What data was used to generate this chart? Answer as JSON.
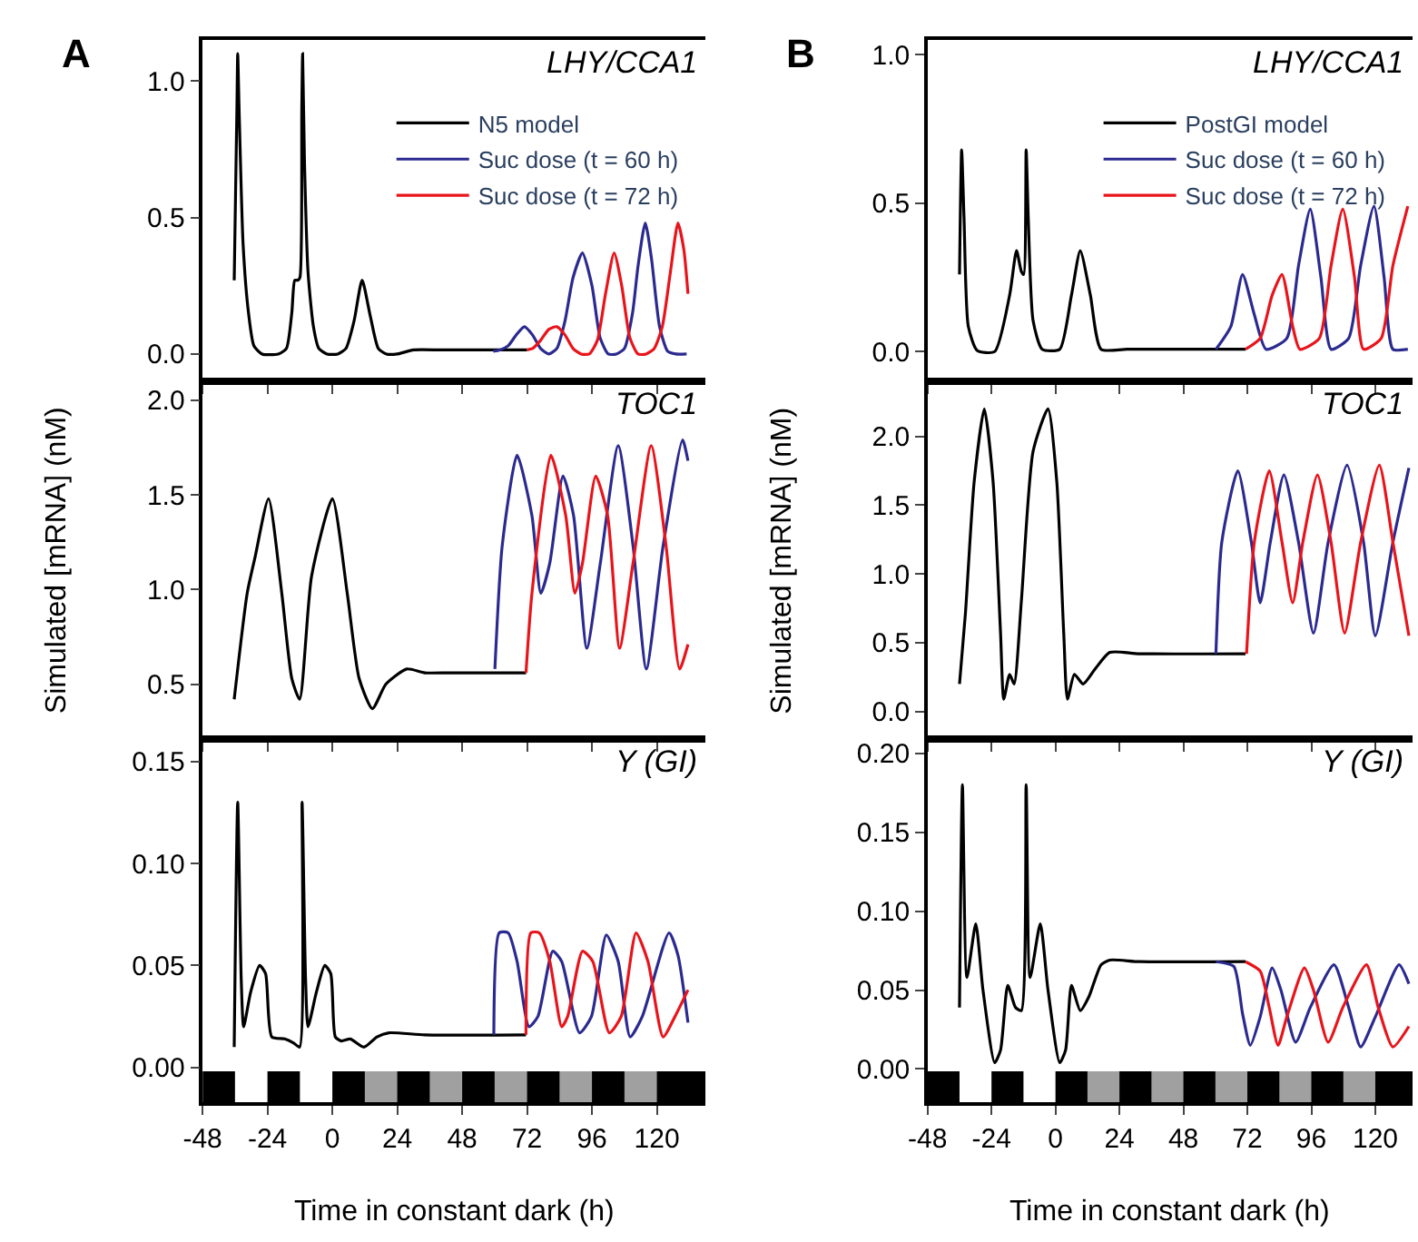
{
  "chart_data": [
    {
      "type": "line",
      "title": "LHY/CCA1",
      "annotations": [
        "A"
      ],
      "legend": "top right",
      "grid": false,
      "tick_labels": "y",
      "xlim": [
        -48,
        138
      ],
      "ylim": [
        -0.1,
        1.15
      ],
      "xticks": [
        -48,
        -24,
        0,
        24,
        48,
        72,
        96,
        120
      ],
      "yticks": [
        {
          "value": 0,
          "label": "0.0"
        },
        {
          "value": 0.5,
          "label": "0.5"
        },
        {
          "value": 1,
          "label": "1.0"
        }
      ],
      "series": [
        {
          "name": "N5 model",
          "color": "#000000",
          "x": [
            -36.3,
            -35.3,
            -35,
            -34.5,
            -33,
            -31,
            -29,
            -26,
            -20,
            -17,
            -15,
            -13.9,
            -12.8,
            -12,
            -11.3,
            -11,
            -10.3,
            -9,
            -7,
            -5,
            -2,
            2,
            5,
            8,
            11,
            14,
            17,
            20,
            24,
            30,
            40,
            50,
            60,
            72
          ],
          "values": [
            0.27,
            0.9,
            1.1,
            0.9,
            0.4,
            0.15,
            0.03,
            0,
            0,
            0.02,
            0.15,
            0.27,
            0.27,
            0.28,
            0.9,
            1.1,
            0.7,
            0.3,
            0.1,
            0.02,
            0,
            0,
            0.02,
            0.12,
            0.27,
            0.14,
            0.02,
            0,
            0,
            0.015,
            0.015,
            0.015,
            0.015,
            0.015
          ]
        },
        {
          "name": "Suc dose (t = 60 h)",
          "color": "#2b2a8f",
          "x": [
            59.5,
            62,
            65,
            68,
            71,
            74,
            77,
            80,
            83,
            86,
            89,
            92.5,
            96,
            99,
            102,
            105,
            108,
            111,
            113,
            115.7,
            118,
            121,
            124,
            127,
            131
          ],
          "values": [
            0.01,
            0.015,
            0.03,
            0.07,
            0.1,
            0.07,
            0.02,
            0,
            0.02,
            0.12,
            0.28,
            0.37,
            0.25,
            0.06,
            0,
            0,
            0.02,
            0.15,
            0.32,
            0.48,
            0.35,
            0.1,
            0.01,
            0,
            0
          ]
        },
        {
          "name": "Suc dose (t = 72 h)",
          "color": "#e8141b",
          "x": [
            72,
            74,
            77,
            80,
            83,
            86,
            89,
            92,
            95,
            98,
            101,
            104.2,
            107,
            110,
            113,
            116,
            119,
            122,
            125,
            127.8,
            130,
            131.5
          ],
          "values": [
            0.015,
            0.02,
            0.05,
            0.09,
            0.1,
            0.07,
            0.02,
            0,
            0,
            0.05,
            0.22,
            0.37,
            0.25,
            0.06,
            0,
            0,
            0.02,
            0.1,
            0.3,
            0.48,
            0.38,
            0.22
          ]
        }
      ]
    },
    {
      "type": "line",
      "title": "TOC1",
      "ylabel": "Simulated [mRNA] (nM)",
      "grid": false,
      "tick_labels": "y",
      "xlim": [
        -48,
        138
      ],
      "ylim": [
        0.21,
        2.1
      ],
      "xticks": [
        -48,
        -24,
        0,
        24,
        48,
        72,
        96,
        120
      ],
      "yticks": [
        {
          "value": 0.5,
          "label": "0.5"
        },
        {
          "value": 1,
          "label": "1.0"
        },
        {
          "value": 1.5,
          "label": "1.5"
        },
        {
          "value": 2,
          "label": "2.0"
        }
      ],
      "series": [
        {
          "color": "#000000",
          "x": [
            -36.3,
            -31.5,
            -28.6,
            -23.6,
            -18.7,
            -15,
            -12.1,
            -7.7,
            0,
            5.5,
            9.9,
            14.8,
            19.8,
            27.5,
            34.2,
            43,
            60.6,
            71.6
          ],
          "values": [
            0.42,
            0.98,
            1.17,
            1.48,
            0.98,
            0.53,
            0.42,
            1.07,
            1.48,
            0.98,
            0.53,
            0.37,
            0.5,
            0.58,
            0.56,
            0.56,
            0.56,
            0.56
          ]
        },
        {
          "color": "#2b2a8f",
          "x": [
            60.1,
            62.8,
            68.3,
            73.8,
            77.1,
            80.4,
            85.3,
            89.2,
            94.1,
            99.1,
            105.7,
            111.2,
            116.1,
            122.3,
            129.5,
            131.5
          ],
          "values": [
            0.58,
            1.23,
            1.71,
            1.39,
            0.98,
            1.14,
            1.6,
            1.39,
            0.69,
            1.14,
            1.76,
            1.23,
            0.58,
            1.23,
            1.79,
            1.68
          ]
        },
        {
          "color": "#e8141b",
          "x": [
            71.6,
            73.8,
            80.8,
            86.3,
            89.7,
            92.5,
            97.4,
            101.8,
            106.2,
            111.2,
            117.9,
            123.4,
            128.4,
            131.5
          ],
          "values": [
            0.56,
            0.98,
            1.71,
            1.39,
            0.98,
            1.14,
            1.6,
            1.39,
            0.69,
            1.14,
            1.76,
            1.23,
            0.58,
            0.71
          ]
        }
      ]
    },
    {
      "type": "line",
      "title": "Y (GI)",
      "xlabel": "Time in constant dark (h)",
      "grid": false,
      "xlim": [
        -48,
        138
      ],
      "ylim": [
        -0.017,
        0.161
      ],
      "xticks": [
        -48,
        -24,
        0,
        24,
        48,
        72,
        96,
        120
      ],
      "yticks": [
        {
          "value": 0,
          "label": "0.00"
        },
        {
          "value": 0.05,
          "label": "0.05"
        },
        {
          "value": 0.1,
          "label": "0.10"
        },
        {
          "value": 0.15,
          "label": "0.15"
        }
      ],
      "bands": [
        {
          "axis": "x",
          "from": -48,
          "to": 138,
          "color": "#000000"
        },
        {
          "axis": "x",
          "from": -36,
          "to": -24,
          "color": "#ffffff"
        },
        {
          "axis": "x",
          "from": -12,
          "to": 0,
          "color": "#ffffff"
        },
        {
          "axis": "x",
          "from": 12,
          "to": 24,
          "color": "#a0a0a0"
        },
        {
          "axis": "x",
          "from": 36,
          "to": 48,
          "color": "#a0a0a0"
        },
        {
          "axis": "x",
          "from": 60,
          "to": 72,
          "color": "#a0a0a0"
        },
        {
          "axis": "x",
          "from": 84,
          "to": 96,
          "color": "#a0a0a0"
        },
        {
          "axis": "x",
          "from": 108,
          "to": 120,
          "color": "#a0a0a0"
        }
      ],
      "series": [
        {
          "color": "#000000",
          "x": [
            -36.3,
            -35,
            -33.7,
            -32.8,
            -30.2,
            -26.9,
            -24.7,
            -22.4,
            -17.6,
            -14.3,
            -12.1,
            -11.2,
            -9.9,
            -9,
            -5.9,
            -2.8,
            -0.6,
            1.1,
            3.3,
            6.6,
            11.7,
            16.5,
            20.9,
            34.2,
            71.6
          ],
          "values": [
            0.01,
            0.13,
            0.043,
            0.02,
            0.037,
            0.05,
            0.046,
            0.015,
            0.014,
            0.012,
            0.01,
            0.13,
            0.043,
            0.02,
            0.037,
            0.05,
            0.046,
            0.015,
            0.013,
            0.014,
            0.01,
            0.015,
            0.017,
            0.016,
            0.016
          ]
        },
        {
          "color": "#2b2a8f",
          "x": [
            59.7,
            61.7,
            65,
            68.3,
            72.7,
            76,
            81.5,
            84.8,
            91.4,
            95.8,
            101.3,
            105.7,
            110.1,
            114.6,
            124.5,
            127.8,
            131.5
          ],
          "values": [
            0.016,
            0.066,
            0.066,
            0.052,
            0.02,
            0.025,
            0.057,
            0.052,
            0.017,
            0.025,
            0.065,
            0.052,
            0.015,
            0.025,
            0.066,
            0.055,
            0.022
          ]
        },
        {
          "color": "#e8141b",
          "x": [
            71.6,
            73.4,
            76.5,
            80.4,
            84.8,
            87,
            92.5,
            96.3,
            102.4,
            106.8,
            112.3,
            116.7,
            122.3,
            126.7,
            131.5
          ],
          "values": [
            0.016,
            0.066,
            0.066,
            0.052,
            0.02,
            0.025,
            0.057,
            0.052,
            0.017,
            0.025,
            0.066,
            0.052,
            0.015,
            0.025,
            0.038
          ]
        }
      ]
    },
    {
      "type": "line",
      "title": "LHY/CCA1",
      "annotations": [
        "B"
      ],
      "legend": "top right",
      "grid": false,
      "tick_labels": "y",
      "xlim": [
        -48,
        134
      ],
      "ylim": [
        -0.1,
        1.05
      ],
      "xticks": [
        -48,
        -24,
        0,
        24,
        48,
        72,
        96,
        120
      ],
      "yticks": [
        {
          "value": 0,
          "label": "0.0"
        },
        {
          "value": 0.5,
          "label": "0.5"
        },
        {
          "value": 1,
          "label": "1.0"
        }
      ],
      "series": [
        {
          "name": "PostGI model",
          "color": "#000000",
          "x": [
            -36,
            -35.2,
            -34.3,
            -32.7,
            -29.4,
            -22.8,
            -17.2,
            -14.6,
            -12.8,
            -11.9,
            -11,
            -10.2,
            -8.4,
            -5,
            1.6,
            6,
            9.3,
            13.1,
            17.1,
            27,
            71.3
          ],
          "values": [
            0.26,
            0.68,
            0.45,
            0.085,
            0.004,
            0,
            0.19,
            0.34,
            0.27,
            0.26,
            0.68,
            0.45,
            0.105,
            0.008,
            0.008,
            0.19,
            0.34,
            0.19,
            0.008,
            0.008,
            0.008
          ]
        },
        {
          "name": "Suc dose (t = 60 h)",
          "color": "#2b2a8f",
          "x": [
            60.2,
            65.8,
            70.2,
            74.6,
            79,
            86.8,
            91.2,
            95.6,
            99.6,
            103.4,
            110,
            114.5,
            119.5,
            123.3,
            126.6,
            132.2
          ],
          "values": [
            0.008,
            0.085,
            0.26,
            0.125,
            0.008,
            0.045,
            0.29,
            0.48,
            0.25,
            0.008,
            0.045,
            0.29,
            0.49,
            0.25,
            0.008,
            0.008
          ]
        },
        {
          "name": "Suc dose (t = 72 h)",
          "color": "#e8141b",
          "x": [
            71.3,
            76.8,
            81.3,
            85,
            89,
            91.7,
            99,
            103.4,
            107.8,
            112.2,
            115.6,
            122.2,
            126.6,
            132.2
          ],
          "values": [
            0.008,
            0.045,
            0.19,
            0.26,
            0.085,
            0.008,
            0.045,
            0.29,
            0.48,
            0.25,
            0.008,
            0.045,
            0.29,
            0.49
          ]
        }
      ]
    },
    {
      "type": "line",
      "title": "TOC1",
      "ylabel": "Simulated [mRNA] (nM)",
      "grid": false,
      "tick_labels": "y",
      "xlim": [
        -48,
        134
      ],
      "ylim": [
        -0.2,
        2.4
      ],
      "xticks": [
        -48,
        -24,
        0,
        24,
        48,
        72,
        96,
        120
      ],
      "yticks": [
        {
          "value": 0,
          "label": "0.0"
        },
        {
          "value": 0.5,
          "label": "0.5"
        },
        {
          "value": 1,
          "label": "1.0"
        },
        {
          "value": 1.5,
          "label": "1.5"
        },
        {
          "value": 2,
          "label": "2.0"
        }
      ],
      "series": [
        {
          "color": "#000000",
          "x": [
            -36,
            -33.8,
            -30.5,
            -26.7,
            -23.4,
            -20.6,
            -19.4,
            -17.2,
            -15.5,
            -12.8,
            -8.4,
            -2.8,
            0.5,
            3.1,
            4.5,
            7.1,
            10.4,
            14.9,
            20.4,
            31.5,
            71.3
          ],
          "values": [
            0.2,
            0.71,
            1.67,
            2.2,
            1.67,
            0.57,
            0.09,
            0.27,
            0.2,
            0.8,
            1.89,
            2.2,
            1.67,
            0.57,
            0.09,
            0.27,
            0.2,
            0.31,
            0.43,
            0.42,
            0.42
          ]
        },
        {
          "color": "#2b2a8f",
          "x": [
            60.2,
            62.4,
            68.4,
            73.5,
            76.8,
            80.6,
            85.7,
            91.2,
            96.8,
            102.3,
            109.4,
            115.6,
            120,
            126.6,
            132.6
          ],
          "values": [
            0.42,
            1.23,
            1.75,
            1.23,
            0.79,
            1.23,
            1.72,
            1.23,
            0.57,
            1.23,
            1.79,
            1.23,
            0.55,
            1.23,
            1.77
          ]
        },
        {
          "color": "#e8141b",
          "x": [
            71.7,
            74.6,
            80.2,
            85,
            89,
            92.8,
            98.3,
            103.4,
            108.5,
            114.5,
            121.5,
            126.6,
            132.6
          ],
          "values": [
            0.42,
            1.23,
            1.75,
            1.23,
            0.79,
            1.23,
            1.72,
            1.23,
            0.57,
            1.23,
            1.79,
            1.23,
            0.55
          ]
        }
      ]
    },
    {
      "type": "line",
      "title": "Y (GI)",
      "xlabel": "Time in constant dark (h)",
      "grid": false,
      "xlim": [
        -48,
        134
      ],
      "ylim": [
        -0.021,
        0.209
      ],
      "xticks": [
        -48,
        -24,
        0,
        24,
        48,
        72,
        96,
        120
      ],
      "yticks": [
        {
          "value": 0,
          "label": "0.00"
        },
        {
          "value": 0.05,
          "label": "0.05"
        },
        {
          "value": 0.1,
          "label": "0.10"
        },
        {
          "value": 0.15,
          "label": "0.15"
        },
        {
          "value": 0.2,
          "label": "0.20"
        }
      ],
      "bands": [
        {
          "axis": "x",
          "from": -48,
          "to": 134,
          "color": "#000000"
        },
        {
          "axis": "x",
          "from": -36,
          "to": -24,
          "color": "#ffffff"
        },
        {
          "axis": "x",
          "from": -12,
          "to": 0,
          "color": "#ffffff"
        },
        {
          "axis": "x",
          "from": 12,
          "to": 24,
          "color": "#a0a0a0"
        },
        {
          "axis": "x",
          "from": 36,
          "to": 48,
          "color": "#a0a0a0"
        },
        {
          "axis": "x",
          "from": 60,
          "to": 72,
          "color": "#a0a0a0"
        },
        {
          "axis": "x",
          "from": 84,
          "to": 96,
          "color": "#a0a0a0"
        },
        {
          "axis": "x",
          "from": 108,
          "to": 120,
          "color": "#a0a0a0"
        }
      ],
      "series": [
        {
          "color": "#000000",
          "x": [
            -36,
            -34.9,
            -33.2,
            -29.9,
            -27.2,
            -22.8,
            -20.6,
            -17.9,
            -15,
            -12.8,
            -11,
            -9.5,
            -5.7,
            -2.8,
            1.6,
            3.8,
            6,
            9.3,
            12.6,
            17.1,
            20.4,
            31.5,
            71.3
          ],
          "values": [
            0.039,
            0.18,
            0.058,
            0.092,
            0.05,
            0.004,
            0.012,
            0.053,
            0.039,
            0.037,
            0.18,
            0.058,
            0.092,
            0.05,
            0.004,
            0.012,
            0.053,
            0.037,
            0.046,
            0.066,
            0.069,
            0.068,
            0.068
          ]
        },
        {
          "color": "#2b2a8f",
          "x": [
            60.2,
            66.9,
            70.2,
            73.1,
            76.8,
            81.3,
            84.6,
            90.1,
            95.6,
            104.5,
            110,
            114.5,
            120,
            128.9,
            132.6
          ],
          "values": [
            0.068,
            0.065,
            0.035,
            0.015,
            0.033,
            0.064,
            0.05,
            0.017,
            0.039,
            0.066,
            0.039,
            0.014,
            0.033,
            0.066,
            0.054
          ]
        },
        {
          "color": "#e8141b",
          "x": [
            71.3,
            76.8,
            80.2,
            83.5,
            86.8,
            93.4,
            96.8,
            102.3,
            107.8,
            116.7,
            121.1,
            126.6,
            132.6
          ],
          "values": [
            0.068,
            0.062,
            0.039,
            0.015,
            0.033,
            0.064,
            0.05,
            0.017,
            0.039,
            0.066,
            0.039,
            0.014,
            0.027
          ]
        }
      ]
    }
  ]
}
